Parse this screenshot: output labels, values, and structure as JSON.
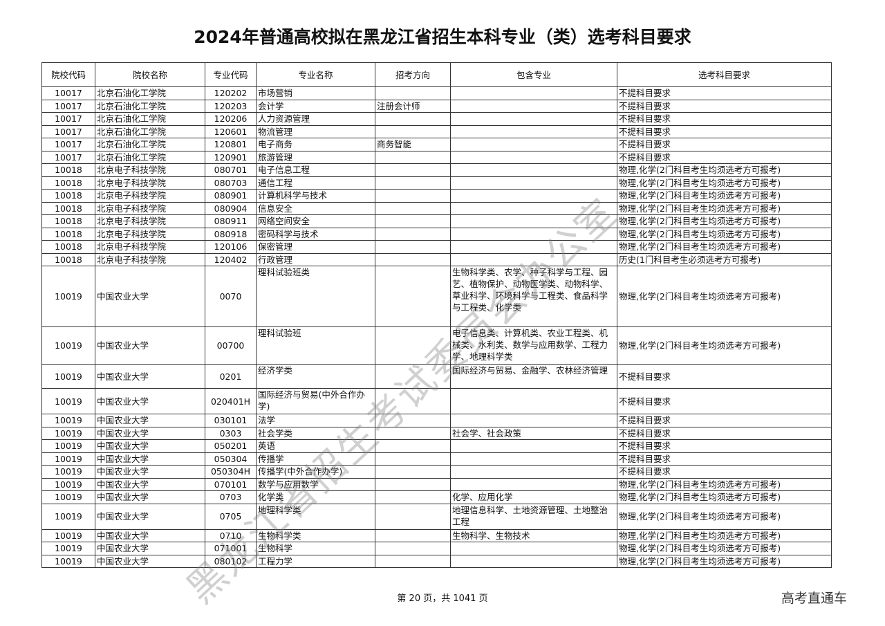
{
  "title": "2024年普通高校拟在黑龙江省招生本科专业（类）选考科目要求",
  "headers": [
    "院校代码",
    "院校名称",
    "专业代码",
    "专业名称",
    "招考方向",
    "包含专业",
    "选考科目要求"
  ],
  "rows": [
    [
      "10017",
      "北京石油化工学院",
      "120202",
      "市场营销",
      "",
      "",
      "不提科目要求"
    ],
    [
      "10017",
      "北京石油化工学院",
      "120203",
      "会计学",
      "注册会计师",
      "",
      "不提科目要求"
    ],
    [
      "10017",
      "北京石油化工学院",
      "120206",
      "人力资源管理",
      "",
      "",
      "不提科目要求"
    ],
    [
      "10017",
      "北京石油化工学院",
      "120601",
      "物流管理",
      "",
      "",
      "不提科目要求"
    ],
    [
      "10017",
      "北京石油化工学院",
      "120801",
      "电子商务",
      "商务智能",
      "",
      "不提科目要求"
    ],
    [
      "10017",
      "北京石油化工学院",
      "120901",
      "旅游管理",
      "",
      "",
      "不提科目要求"
    ],
    [
      "10018",
      "北京电子科技学院",
      "080701",
      "电子信息工程",
      "",
      "",
      "物理,化学(2门科目考生均须选考方可报考)"
    ],
    [
      "10018",
      "北京电子科技学院",
      "080703",
      "通信工程",
      "",
      "",
      "物理,化学(2门科目考生均须选考方可报考)"
    ],
    [
      "10018",
      "北京电子科技学院",
      "080901",
      "计算机科学与技术",
      "",
      "",
      "物理,化学(2门科目考生均须选考方可报考)"
    ],
    [
      "10018",
      "北京电子科技学院",
      "080904",
      "信息安全",
      "",
      "",
      "物理,化学(2门科目考生均须选考方可报考)"
    ],
    [
      "10018",
      "北京电子科技学院",
      "080911",
      "网络空间安全",
      "",
      "",
      "物理,化学(2门科目考生均须选考方可报考)"
    ],
    [
      "10018",
      "北京电子科技学院",
      "080918",
      "密码科学与技术",
      "",
      "",
      "物理,化学(2门科目考生均须选考方可报考)"
    ],
    [
      "10018",
      "北京电子科技学院",
      "120106",
      "保密管理",
      "",
      "",
      "物理,化学(2门科目考生均须选考方可报考)"
    ],
    [
      "10018",
      "北京电子科技学院",
      "120402",
      "行政管理",
      "",
      "",
      "历史(1门科目考生必须选考方可报考)"
    ],
    [
      "10019",
      "中国农业大学",
      "0070",
      "理科试验班类",
      "",
      "生物科学类、农学、种子科学与工程、园艺、植物保护、动物医学类、动物科学、草业科学、环境科学与工程类、食品科学与工程类、化学类",
      "物理,化学(2门科目考生均须选考方可报考)"
    ],
    [
      "10019",
      "中国农业大学",
      "00700",
      "理科试验班",
      "",
      "电子信息类、计算机类、农业工程类、机械类、水利类、数学与应用数学、工程力学、地理科学类",
      "物理,化学(2门科目考生均须选考方可报考)"
    ],
    [
      "10019",
      "中国农业大学",
      "0201",
      "经济学类",
      "",
      "国际经济与贸易、金融学、农林经济管理",
      "不提科目要求"
    ],
    [
      "10019",
      "中国农业大学",
      "020401H",
      "国际经济与贸易(中外合作办学)",
      "",
      "",
      "不提科目要求"
    ],
    [
      "10019",
      "中国农业大学",
      "030101",
      "法学",
      "",
      "",
      "不提科目要求"
    ],
    [
      "10019",
      "中国农业大学",
      "0303",
      "社会学类",
      "",
      "社会学、社会政策",
      "不提科目要求"
    ],
    [
      "10019",
      "中国农业大学",
      "050201",
      "英语",
      "",
      "",
      "不提科目要求"
    ],
    [
      "10019",
      "中国农业大学",
      "050304",
      "传播学",
      "",
      "",
      "不提科目要求"
    ],
    [
      "10019",
      "中国农业大学",
      "050304H",
      "传播学(中外合作办学)",
      "",
      "",
      "不提科目要求"
    ],
    [
      "10019",
      "中国农业大学",
      "070101",
      "数学与应用数学",
      "",
      "",
      "物理,化学(2门科目考生均须选考方可报考)"
    ],
    [
      "10019",
      "中国农业大学",
      "0703",
      "化学类",
      "",
      "化学、应用化学",
      "物理,化学(2门科目考生均须选考方可报考)"
    ],
    [
      "10019",
      "中国农业大学",
      "0705",
      "地理科学类",
      "",
      "地理信息科学、土地资源管理、土地整治工程",
      "物理,化学(2门科目考生均须选考方可报考)"
    ],
    [
      "10019",
      "中国农业大学",
      "0710",
      "生物科学类",
      "",
      "生物科学、生物技术",
      "物理,化学(2门科目考生均须选考方可报考)"
    ],
    [
      "10019",
      "中国农业大学",
      "071001",
      "生物科学",
      "",
      "",
      "物理,化学(2门科目考生均须选考方可报考)"
    ],
    [
      "10019",
      "中国农业大学",
      "080102",
      "工程力学",
      "",
      "",
      "物理,化学(2门科目考生均须选考方可报考)"
    ]
  ],
  "watermark": "黑龙江省招生考试委员会办公室",
  "footer": "第 20 页，共 1041 页",
  "brand": "高考直通车"
}
